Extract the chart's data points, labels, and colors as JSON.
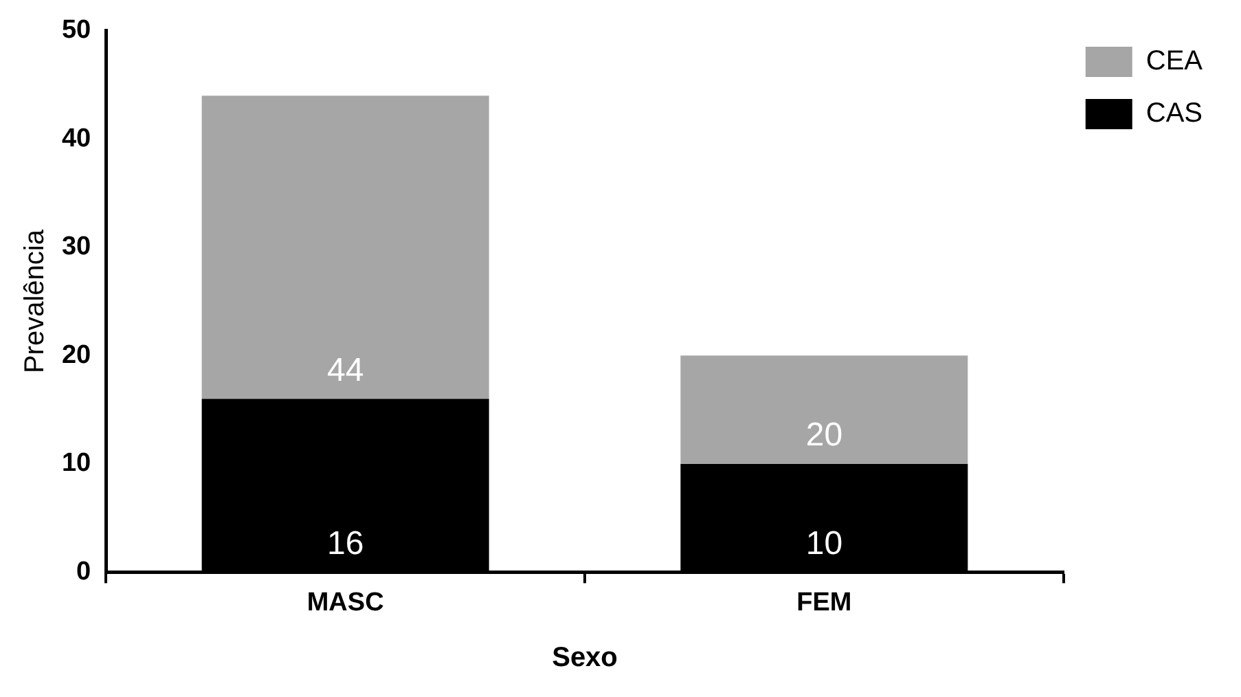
{
  "chart_data": {
    "type": "bar",
    "xlabel": "Sexo",
    "ylabel": "Prevalência",
    "categories": [
      "MASC",
      "FEM"
    ],
    "stacked": true,
    "series": [
      {
        "name": "CAS",
        "color": "#000000",
        "values": [
          16,
          10
        ],
        "value_labels": [
          "16",
          "10"
        ]
      },
      {
        "name": "CEA",
        "color": "#a6a6a6",
        "values": [
          28,
          10
        ]
      }
    ],
    "totals": [
      "44",
      "20"
    ],
    "ylim": [
      0,
      50
    ],
    "yticks": [
      0,
      10,
      20,
      30,
      40,
      50
    ],
    "grid": false,
    "legend": "top right"
  }
}
